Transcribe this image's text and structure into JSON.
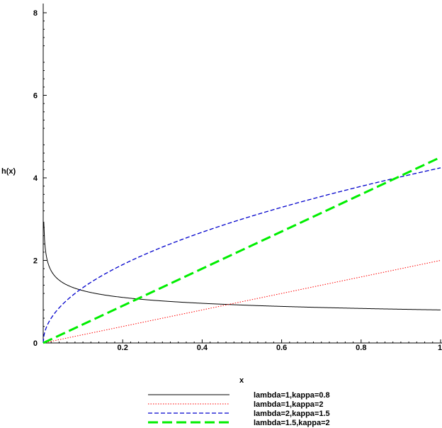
{
  "chart_data": {
    "type": "line",
    "xlabel": "x",
    "ylabel": "h(x)",
    "xlim": [
      0,
      1
    ],
    "ylim": [
      0,
      8.2
    ],
    "x_ticks": [
      "0.2",
      "0.4",
      "0.6",
      "0.8",
      "1"
    ],
    "y_ticks": [
      "0",
      "2",
      "4",
      "6",
      "8"
    ],
    "grid": false,
    "legend_position": "bottom",
    "series": [
      {
        "name": "lambda=1,kappa=0.8",
        "lambda": 1,
        "kappa": 0.8,
        "color": "#000000",
        "dash": "solid",
        "width": 1
      },
      {
        "name": "lambda=1,kappa=2",
        "lambda": 1,
        "kappa": 2,
        "color": "#ff0000",
        "dash": "dotted",
        "width": 1
      },
      {
        "name": "lambda=2,kappa=1.5",
        "lambda": 2,
        "kappa": 1.5,
        "color": "#0000cc",
        "dash": "dashed",
        "width": 1.3
      },
      {
        "name": "lambda=1.5,kappa=2",
        "lambda": 1.5,
        "kappa": 2,
        "color": "#00ee00",
        "dash": "longdash",
        "width": 3
      }
    ]
  }
}
